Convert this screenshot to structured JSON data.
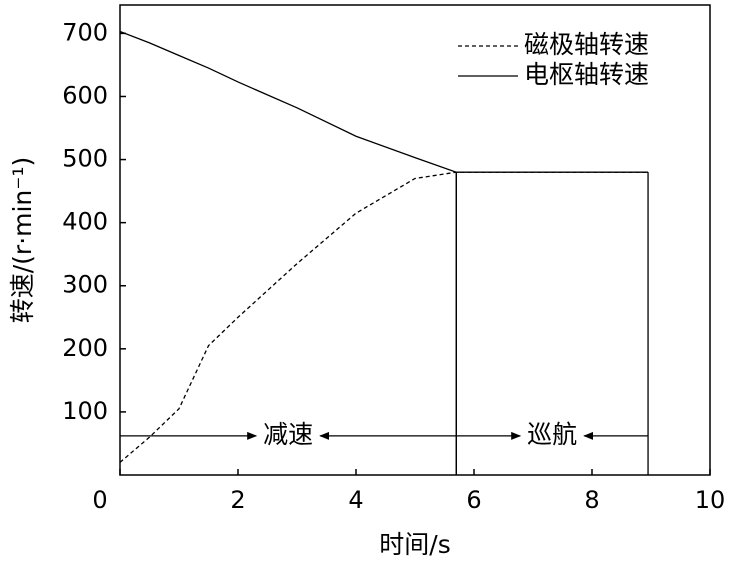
{
  "chart_data": {
    "type": "line",
    "xlabel": "时间/s",
    "ylabel": "转速/(r·min⁻¹)",
    "xlim": [
      0,
      10
    ],
    "ylim": [
      0,
      745
    ],
    "xticks": [
      0,
      2,
      4,
      6,
      8,
      10
    ],
    "yticks": [
      100,
      200,
      300,
      400,
      500,
      600,
      700
    ],
    "legend": "upper right",
    "series": [
      {
        "name": "磁极轴转速",
        "color": "#000000",
        "dash": true,
        "x": [
          0,
          0.5,
          1,
          1.5,
          2,
          3,
          4,
          5,
          5.7,
          8.95
        ],
        "values": [
          20,
          60,
          105,
          205,
          250,
          335,
          415,
          470,
          480,
          480
        ]
      },
      {
        "name": "电枢轴转速",
        "color": "#000000",
        "dash": false,
        "x": [
          0,
          0.5,
          1,
          1.5,
          2,
          3,
          4,
          5,
          5.7,
          8.95
        ],
        "values": [
          703,
          685,
          665,
          645,
          623,
          582,
          537,
          503,
          480,
          480
        ]
      }
    ],
    "phases": [
      {
        "label": "减速",
        "from": 0,
        "to": 5.7,
        "level": 62,
        "top": 480
      },
      {
        "label": "巡航",
        "from": 5.7,
        "to": 8.95,
        "level": 62,
        "top": 480
      }
    ]
  }
}
